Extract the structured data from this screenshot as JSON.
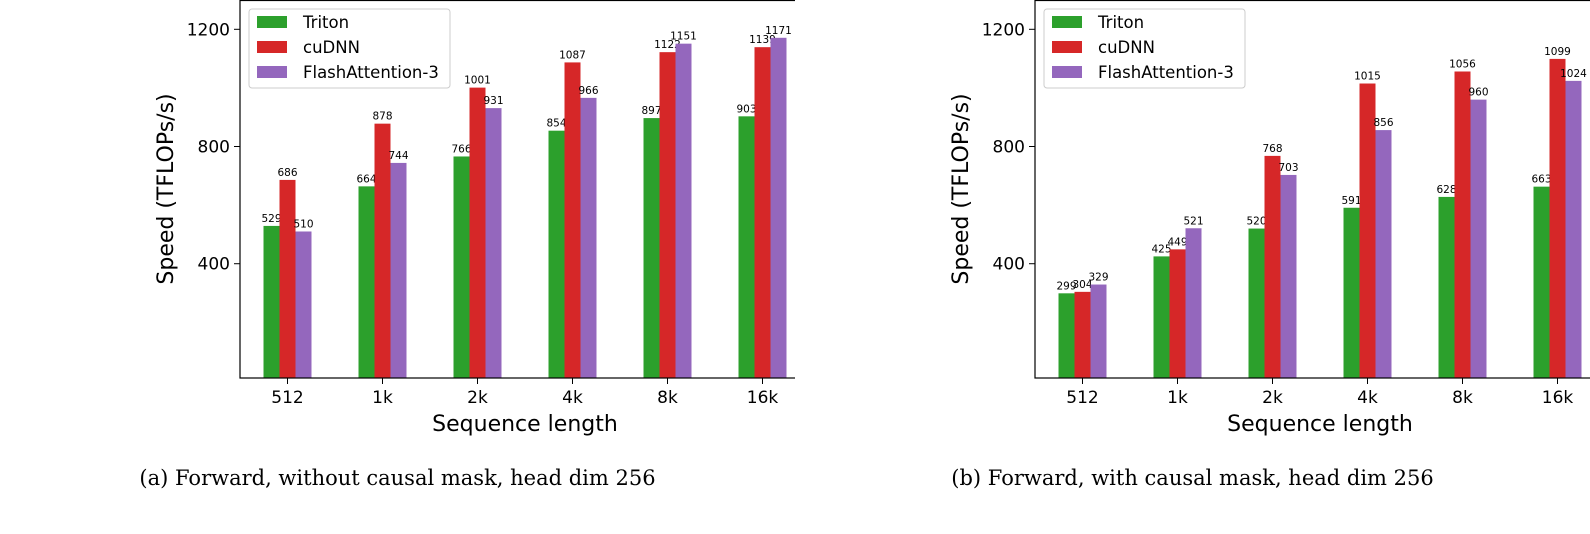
{
  "colors": {
    "Triton": "#2ca02c",
    "cuDNN": "#d62728",
    "FlashAttention-3": "#9467bd"
  },
  "chart_data": [
    {
      "type": "bar",
      "caption": "(a) Forward, without causal mask, head dim 256",
      "categories": [
        "512",
        "1k",
        "2k",
        "4k",
        "8k",
        "16k"
      ],
      "series": [
        {
          "name": "Triton",
          "values": [
            529,
            664,
            766,
            854,
            897,
            903
          ]
        },
        {
          "name": "cuDNN",
          "values": [
            686,
            878,
            1001,
            1087,
            1122,
            1139
          ]
        },
        {
          "name": "FlashAttention-3",
          "values": [
            510,
            744,
            931,
            966,
            1151,
            1171
          ]
        }
      ],
      "xlabel": "Sequence length",
      "ylabel": "Speed (TFLOPs/s)",
      "ylim": [
        10,
        1300
      ],
      "yticks": [
        400,
        800,
        1200
      ],
      "legend": "top-left",
      "grid": false
    },
    {
      "type": "bar",
      "caption": "(b) Forward, with causal mask, head dim 256",
      "categories": [
        "512",
        "1k",
        "2k",
        "4k",
        "8k",
        "16k"
      ],
      "series": [
        {
          "name": "Triton",
          "values": [
            299,
            425,
            520,
            591,
            628,
            663
          ]
        },
        {
          "name": "cuDNN",
          "values": [
            304,
            449,
            768,
            1015,
            1056,
            1099
          ]
        },
        {
          "name": "FlashAttention-3",
          "values": [
            329,
            521,
            703,
            856,
            960,
            1024
          ]
        }
      ],
      "xlabel": "Sequence length",
      "ylabel": "Speed (TFLOPs/s)",
      "ylim": [
        10,
        1300
      ],
      "yticks": [
        400,
        800,
        1200
      ],
      "legend": "top-left",
      "grid": false
    }
  ]
}
